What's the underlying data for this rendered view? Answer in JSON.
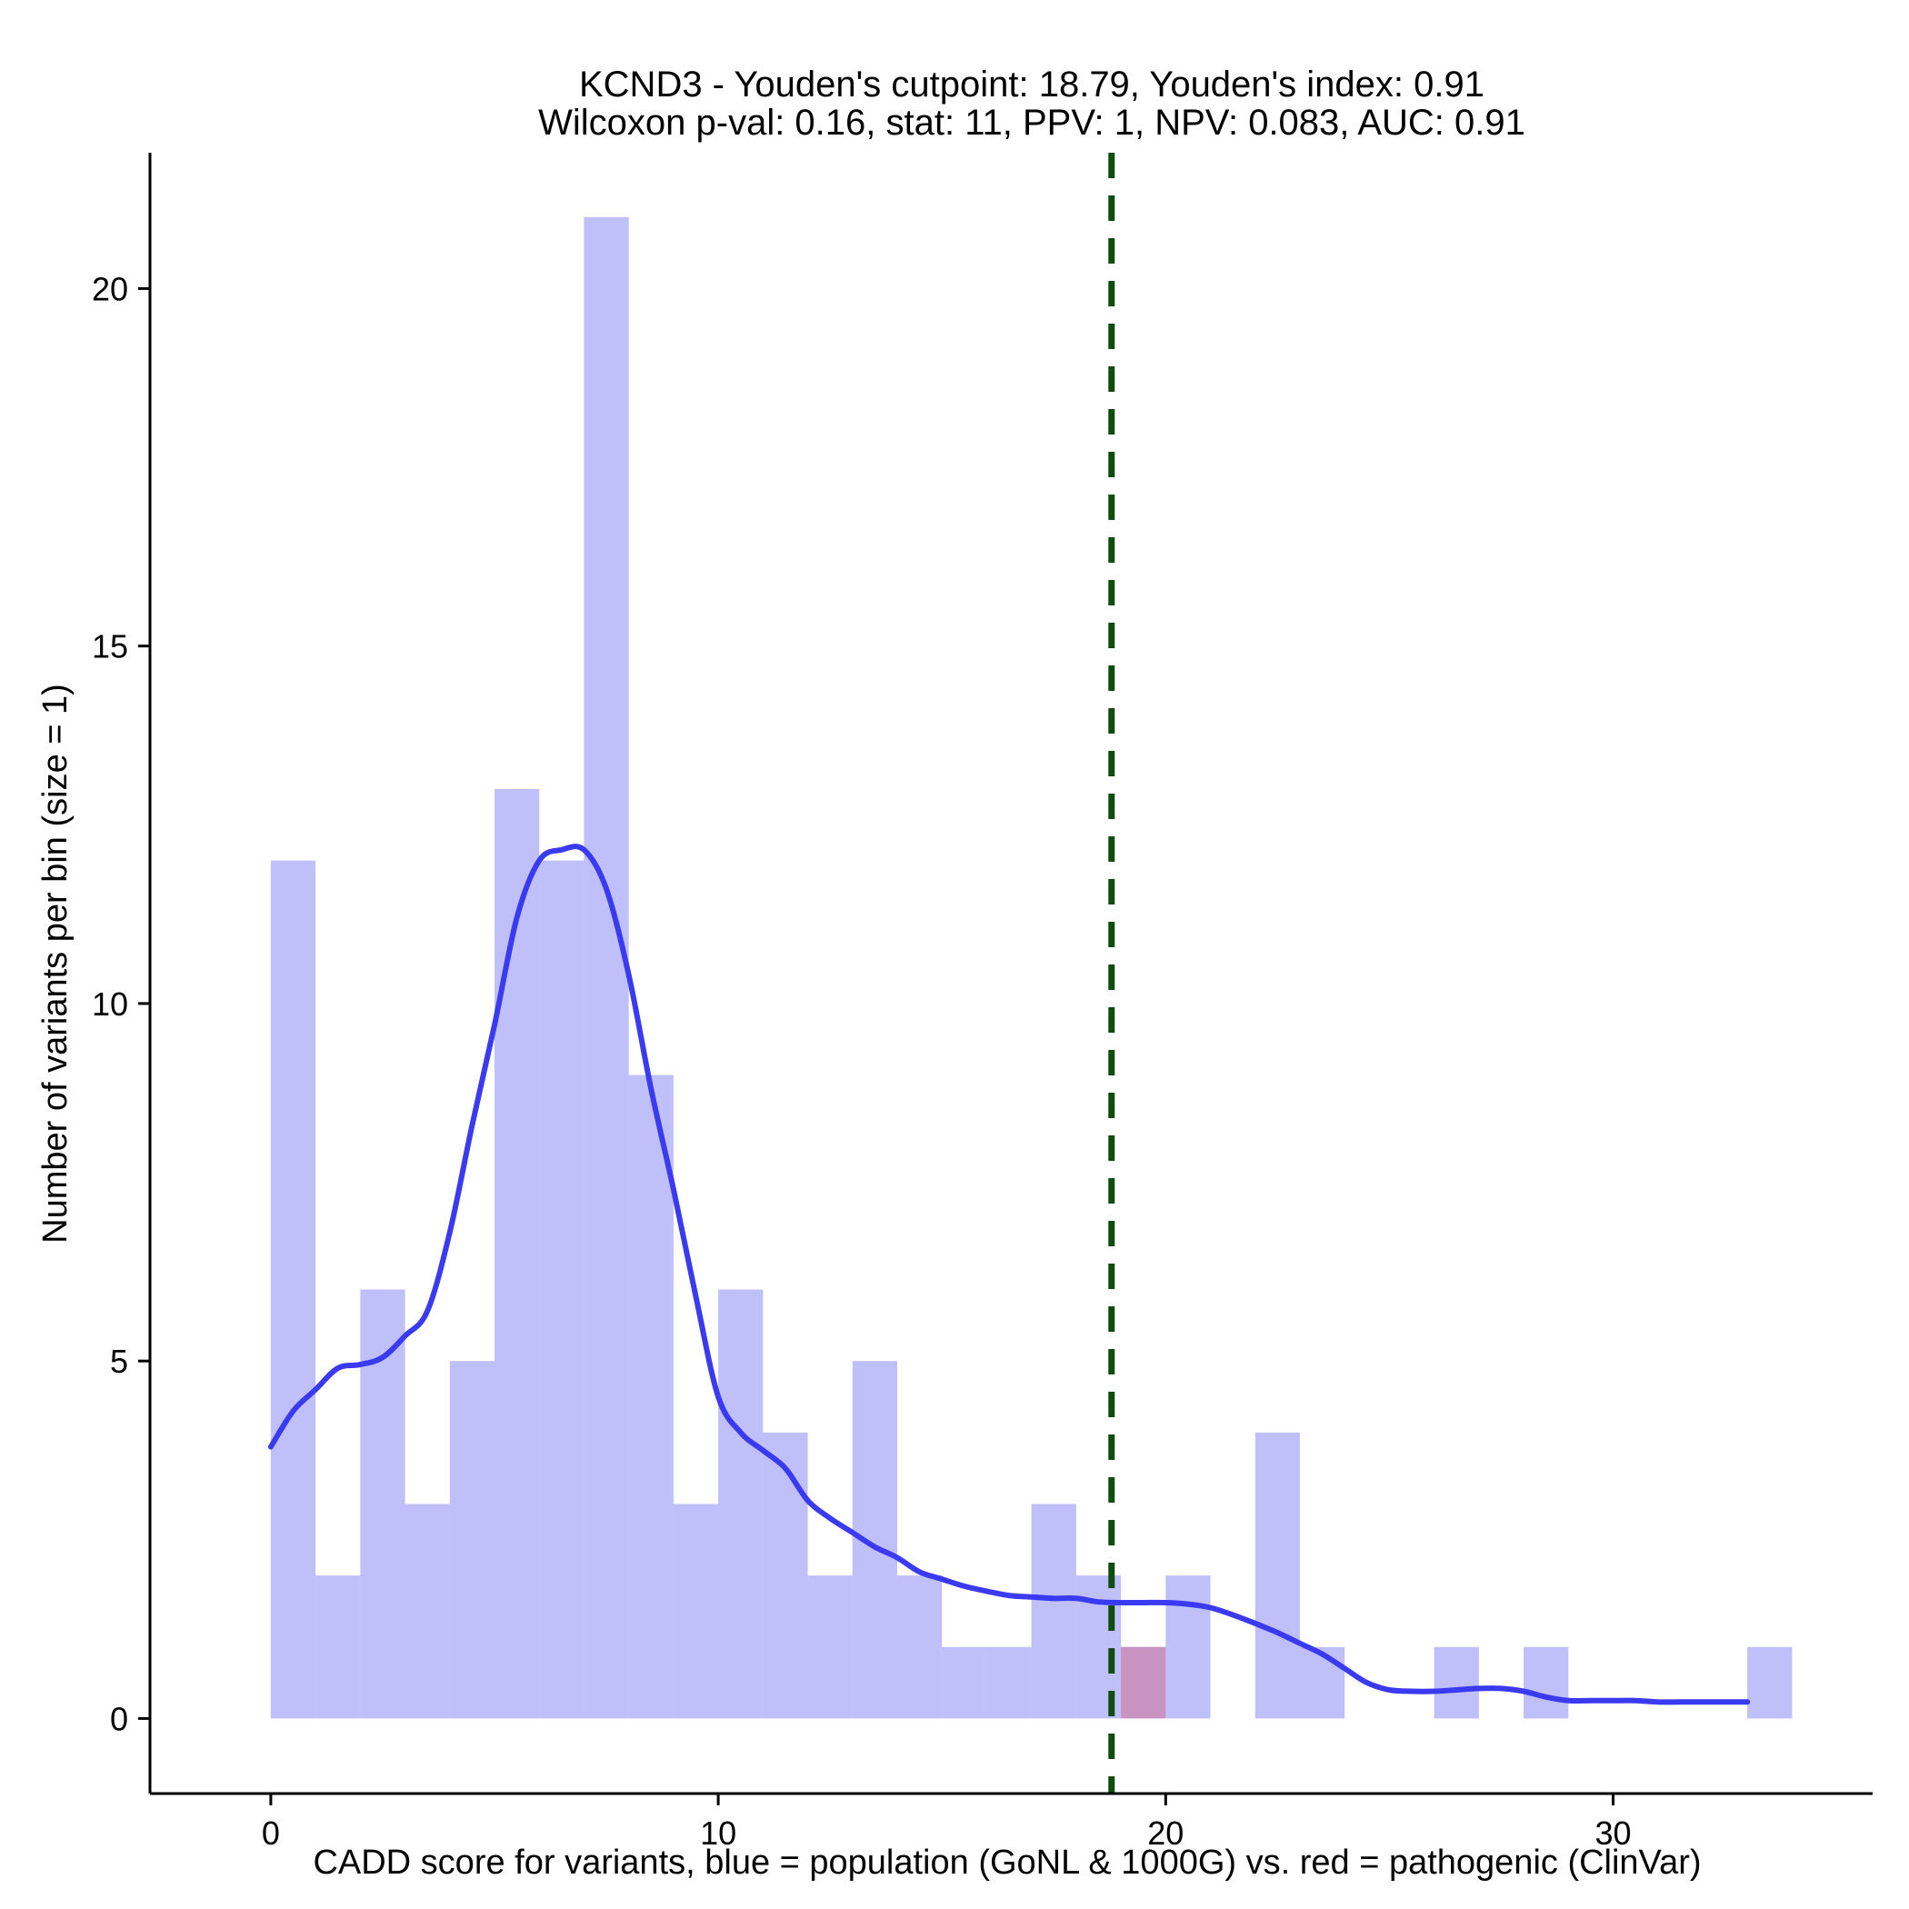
{
  "chart_data": {
    "type": "bar",
    "title_lines": [
      "KCND3 - Youden's cutpoint: 18.79, Youden's index: 0.91",
      "Wilcoxon p-val: 0.16, stat: 11, PPV: 1, NPV: 0.083, AUC: 0.91"
    ],
    "xlabel": "CADD score for variants, blue = population (GoNL & 1000G) vs. red = pathogenic (ClinVar)",
    "ylabel": "Number of variants per bin (size = 1)",
    "xlim": [
      -2.7,
      35.8
    ],
    "ylim": [
      -1.05,
      21.9
    ],
    "x_ticks": [
      0,
      10,
      20,
      30
    ],
    "y_ticks": [
      0,
      5,
      10,
      15,
      20
    ],
    "bin_width": 1,
    "series": [
      {
        "name": "population (GoNL & 1000G)",
        "color": "#8080f5",
        "opacity": 0.5,
        "bins": [
          {
            "start": 0,
            "count": 12
          },
          {
            "start": 1,
            "count": 2
          },
          {
            "start": 2,
            "count": 6
          },
          {
            "start": 3,
            "count": 3
          },
          {
            "start": 4,
            "count": 5
          },
          {
            "start": 5,
            "count": 13
          },
          {
            "start": 6,
            "count": 12
          },
          {
            "start": 7,
            "count": 21
          },
          {
            "start": 8,
            "count": 9
          },
          {
            "start": 9,
            "count": 3
          },
          {
            "start": 10,
            "count": 6
          },
          {
            "start": 11,
            "count": 4
          },
          {
            "start": 12,
            "count": 2
          },
          {
            "start": 13,
            "count": 5
          },
          {
            "start": 14,
            "count": 2
          },
          {
            "start": 15,
            "count": 1
          },
          {
            "start": 16,
            "count": 1
          },
          {
            "start": 17,
            "count": 3
          },
          {
            "start": 18,
            "count": 2
          },
          {
            "start": 19,
            "count": 1
          },
          {
            "start": 20,
            "count": 2
          },
          {
            "start": 22,
            "count": 4
          },
          {
            "start": 23,
            "count": 1
          },
          {
            "start": 26,
            "count": 1
          },
          {
            "start": 28,
            "count": 1
          },
          {
            "start": 33,
            "count": 1
          }
        ]
      },
      {
        "name": "pathogenic (ClinVar)",
        "color": "#d07090",
        "opacity": 0.55,
        "bins": [
          {
            "start": 19,
            "count": 1
          }
        ]
      }
    ],
    "density_curve": {
      "name": "population density",
      "color": "#3a3af0",
      "x": [
        0,
        0.5,
        1,
        1.5,
        2,
        2.5,
        3,
        3.5,
        4,
        4.5,
        5,
        5.5,
        6,
        6.5,
        7,
        7.5,
        8,
        8.5,
        9,
        9.5,
        10,
        10.5,
        11,
        11.5,
        12,
        12.5,
        13,
        13.5,
        14,
        14.5,
        15,
        15.5,
        16,
        16.5,
        17,
        17.5,
        18,
        18.5,
        19,
        19.5,
        20,
        20.5,
        21,
        21.5,
        22,
        22.5,
        23,
        23.5,
        24,
        24.5,
        25,
        25.5,
        26,
        26.5,
        27,
        27.5,
        28,
        28.5,
        29,
        29.5,
        30,
        30.5,
        31,
        31.5,
        32,
        32.5,
        33
      ],
      "y": [
        3.8,
        4.3,
        4.6,
        4.9,
        4.95,
        5.05,
        5.35,
        5.7,
        6.8,
        8.3,
        9.7,
        11.2,
        12.0,
        12.15,
        12.15,
        11.6,
        10.4,
        8.8,
        7.4,
        5.9,
        4.5,
        4.0,
        3.75,
        3.5,
        3.05,
        2.8,
        2.6,
        2.4,
        2.25,
        2.05,
        1.95,
        1.85,
        1.78,
        1.72,
        1.7,
        1.68,
        1.68,
        1.63,
        1.62,
        1.62,
        1.62,
        1.6,
        1.55,
        1.45,
        1.33,
        1.2,
        1.05,
        0.9,
        0.7,
        0.5,
        0.4,
        0.38,
        0.38,
        0.4,
        0.42,
        0.42,
        0.38,
        0.3,
        0.25,
        0.25,
        0.25,
        0.25,
        0.23,
        0.23,
        0.23,
        0.23,
        0.23
      ]
    },
    "cutpoint": {
      "label": "Youden's cutpoint",
      "x": 18.79,
      "color": "#0f4d0f",
      "style": "dashed"
    },
    "grid": false,
    "legend": "none"
  }
}
